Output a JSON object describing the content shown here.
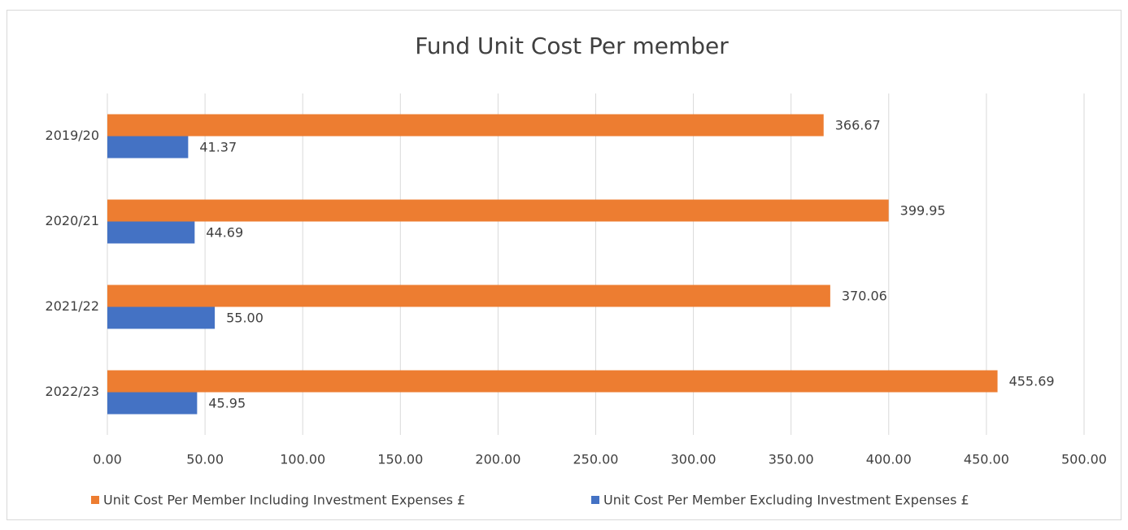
{
  "chart_data": {
    "type": "hbar",
    "title": "Fund Unit Cost Per member",
    "categories": [
      "2019/20",
      "2020/21",
      "2021/22",
      "2022/23"
    ],
    "series": [
      {
        "name": "Unit Cost Per Member Including Investment Expenses  £",
        "color": "#ed7d31",
        "values": [
          366.67,
          399.95,
          370.06,
          455.69
        ],
        "value_labels": [
          "366.67",
          "399.95",
          "370.06",
          "455.69"
        ]
      },
      {
        "name": "Unit Cost Per Member Excluding Investment Expenses  £",
        "color": "#4472c4",
        "values": [
          41.37,
          44.69,
          55.0,
          45.95
        ],
        "value_labels": [
          "41.37",
          "44.69",
          "55.00",
          "45.95"
        ]
      }
    ],
    "xlim": [
      0,
      500
    ],
    "xticks": [
      {
        "value": 0,
        "label": "0.00"
      },
      {
        "value": 50,
        "label": "50.00"
      },
      {
        "value": 100,
        "label": "100.00"
      },
      {
        "value": 150,
        "label": "150.00"
      },
      {
        "value": 200,
        "label": "200.00"
      },
      {
        "value": 250,
        "label": "250.00"
      },
      {
        "value": 300,
        "label": "300.00"
      },
      {
        "value": 350,
        "label": "350.00"
      },
      {
        "value": 400,
        "label": "400.00"
      },
      {
        "value": 450,
        "label": "450.00"
      },
      {
        "value": 500,
        "label": "500.00"
      }
    ],
    "grid": true,
    "legend": "bottom"
  }
}
